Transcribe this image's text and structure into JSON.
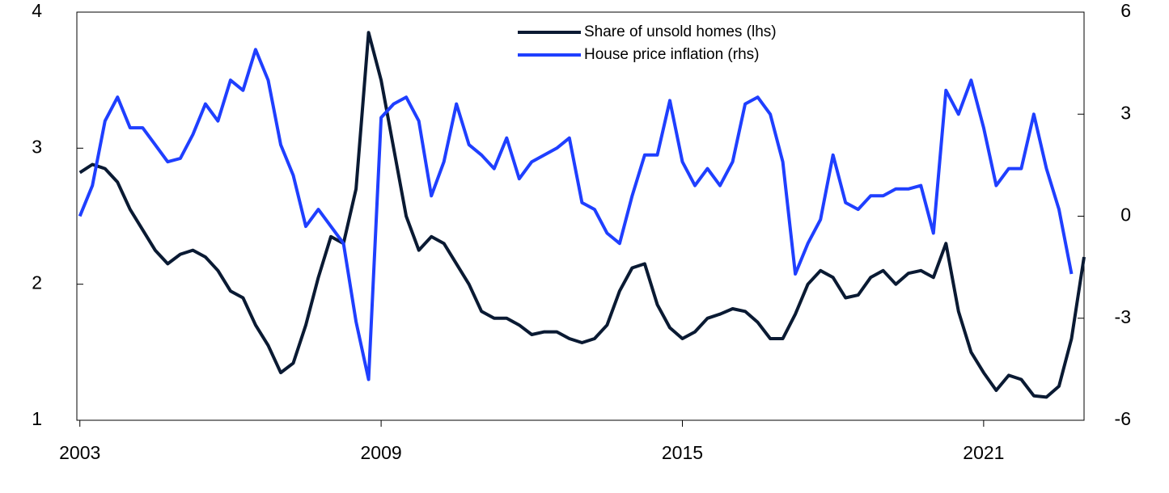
{
  "chart_data": {
    "type": "line",
    "x": [
      2003,
      2003.25,
      2003.5,
      2003.75,
      2004,
      2004.25,
      2004.5,
      2004.75,
      2005,
      2005.25,
      2005.5,
      2005.75,
      2006,
      2006.25,
      2006.5,
      2006.75,
      2007,
      2007.25,
      2007.5,
      2007.75,
      2008,
      2008.25,
      2008.5,
      2008.75,
      2009,
      2009.25,
      2009.5,
      2009.75,
      2010,
      2010.25,
      2010.5,
      2010.75,
      2011,
      2011.25,
      2011.5,
      2011.75,
      2012,
      2012.25,
      2012.5,
      2012.75,
      2013,
      2013.25,
      2013.5,
      2013.75,
      2014,
      2014.25,
      2014.5,
      2014.75,
      2015,
      2015.25,
      2015.5,
      2015.75,
      2016,
      2016.25,
      2016.5,
      2016.75,
      2017,
      2017.25,
      2017.5,
      2017.75,
      2018,
      2018.25,
      2018.5,
      2018.75,
      2019,
      2019.25,
      2019.5,
      2019.75,
      2020,
      2020.25,
      2020.5,
      2020.75,
      2021,
      2021.25,
      2021.5,
      2021.75,
      2022,
      2022.25,
      2022.5,
      2022.75,
      2023
    ],
    "series": [
      {
        "name": "Share of unsold homes (lhs)",
        "color": "#0a1a33",
        "values": [
          2.82,
          2.88,
          2.85,
          2.75,
          2.55,
          2.4,
          2.25,
          2.15,
          2.22,
          2.25,
          2.2,
          2.1,
          1.95,
          1.9,
          1.7,
          1.55,
          1.35,
          1.42,
          1.7,
          2.05,
          2.35,
          2.3,
          2.7,
          3.85,
          3.5,
          3.0,
          2.5,
          2.25,
          2.35,
          2.3,
          2.15,
          2.0,
          1.8,
          1.75,
          1.75,
          1.7,
          1.63,
          1.65,
          1.65,
          1.6,
          1.57,
          1.6,
          1.7,
          1.95,
          2.12,
          2.15,
          1.85,
          1.68,
          1.6,
          1.65,
          1.75,
          1.78,
          1.82,
          1.8,
          1.72,
          1.6,
          1.6,
          1.78,
          2.0,
          2.1,
          2.05,
          1.9,
          1.92,
          2.05,
          2.1,
          2.0,
          2.08,
          2.1,
          2.05,
          2.3,
          1.8,
          1.5,
          1.35,
          1.22,
          1.33,
          1.3,
          1.18,
          1.17,
          1.25,
          1.6,
          2.2
        ]
      },
      {
        "name": "House price inflation (rhs)",
        "color": "#1f3fff",
        "axis": "y2",
        "values": [
          0,
          0.9,
          2.8,
          3.5,
          2.6,
          2.6,
          2.1,
          1.6,
          1.7,
          2.4,
          3.3,
          2.8,
          4.0,
          3.7,
          4.9,
          4.0,
          2.1,
          1.2,
          -0.3,
          0.2,
          -0.3,
          -0.8,
          -3.1,
          -4.8,
          2.9,
          3.3,
          3.5,
          2.8,
          0.6,
          1.6,
          3.3,
          2.1,
          1.8,
          1.4,
          2.3,
          1.1,
          1.6,
          1.8,
          2.0,
          2.3,
          0.4,
          0.2,
          -0.5,
          -0.8,
          0.6,
          1.8,
          1.8,
          3.4,
          1.6,
          0.9,
          1.4,
          0.9,
          1.6,
          3.3,
          3.5,
          3.0,
          1.6,
          -1.7,
          -0.8,
          -0.1,
          1.8,
          0.4,
          0.2,
          0.6,
          0.6,
          0.8,
          0.8,
          0.9,
          -0.5,
          3.7,
          3.0,
          4.0,
          2.6,
          0.9,
          1.4,
          1.4,
          3.0,
          1.4,
          0.2,
          -1.7,
          null
        ]
      }
    ],
    "xlim": [
      2002.94,
      2023
    ],
    "xticks": [
      2003,
      2009,
      2015,
      2021
    ],
    "ylim": [
      1,
      4
    ],
    "yticks": [
      1,
      2,
      3,
      4
    ],
    "y2lim": [
      -6,
      6
    ],
    "y2ticks": [
      -6,
      -3,
      0,
      3,
      6
    ],
    "legend": "top-center"
  }
}
